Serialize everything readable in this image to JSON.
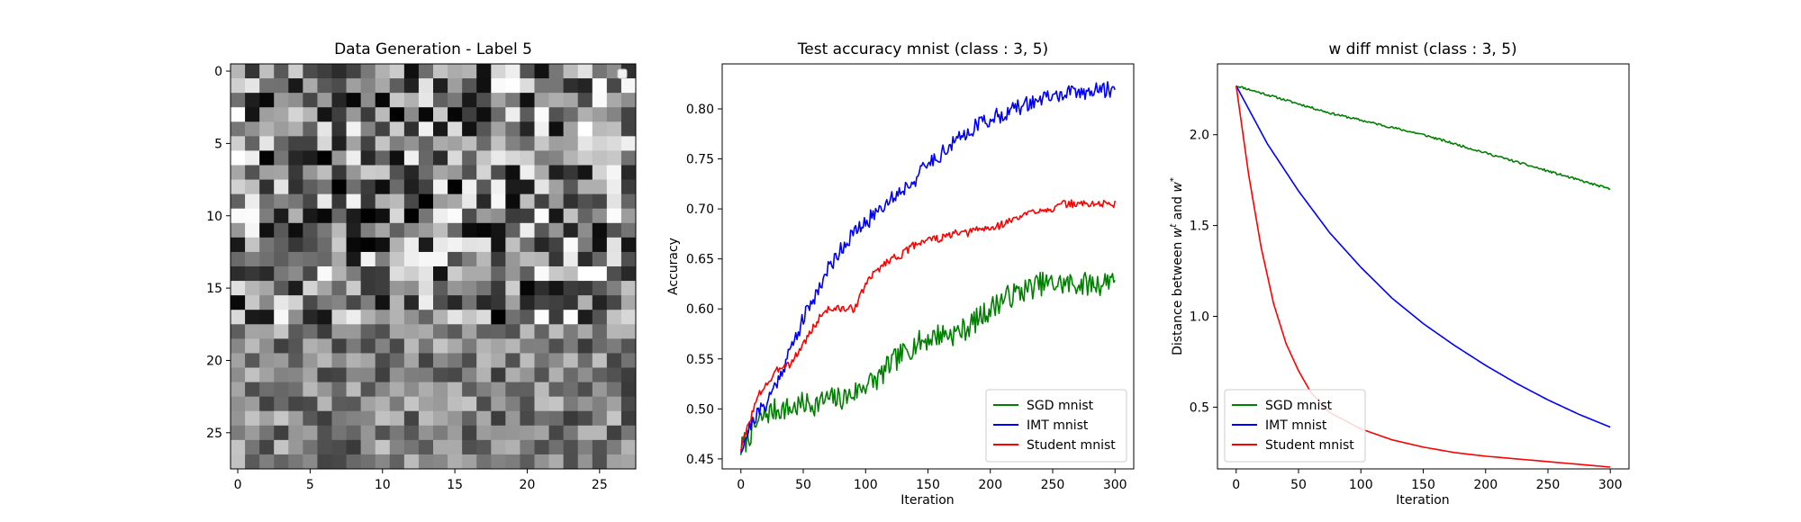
{
  "chart_data": [
    {
      "type": "heatmap",
      "title": "Data Generation - Label 5",
      "xlabel": "",
      "ylabel": "",
      "rows": 28,
      "cols": 28,
      "xlim": [
        -0.5,
        27.5
      ],
      "ylim": [
        27.5,
        -0.5
      ],
      "xticks": [
        0,
        5,
        10,
        15,
        20,
        25
      ],
      "yticks": [
        0,
        5,
        10,
        15,
        20,
        25
      ],
      "colormap": "gray",
      "value_range": [
        0,
        1
      ],
      "legend": "top-right (empty)",
      "seed": 1234
    },
    {
      "type": "line",
      "title": "Test accuracy mnist (class : 3, 5)",
      "xlabel": "Iteration",
      "ylabel": "Accuracy",
      "xlim": [
        -15,
        315
      ],
      "ylim": [
        0.44,
        0.845
      ],
      "xticks": [
        0,
        50,
        100,
        150,
        200,
        250,
        300
      ],
      "yticks": [
        0.45,
        0.5,
        0.55,
        0.6,
        0.65,
        0.7,
        0.75,
        0.8
      ],
      "ytick_labels": [
        "0.45",
        "0.50",
        "0.55",
        "0.60",
        "0.65",
        "0.70",
        "0.75",
        "0.80"
      ],
      "grid": false,
      "legend": "lower-right",
      "series": [
        {
          "name": "SGD mnist",
          "color": "#008000",
          "x": [
            0,
            10,
            20,
            30,
            40,
            50,
            60,
            70,
            80,
            90,
            100,
            110,
            120,
            130,
            140,
            150,
            160,
            170,
            180,
            190,
            200,
            210,
            220,
            230,
            240,
            250,
            260,
            270,
            280,
            290,
            300
          ],
          "y": [
            0.46,
            0.48,
            0.495,
            0.5,
            0.5,
            0.505,
            0.505,
            0.51,
            0.51,
            0.515,
            0.525,
            0.53,
            0.545,
            0.555,
            0.565,
            0.57,
            0.575,
            0.575,
            0.58,
            0.59,
            0.6,
            0.61,
            0.615,
            0.62,
            0.625,
            0.625,
            0.625,
            0.625,
            0.625,
            0.625,
            0.635
          ],
          "noise": 0.012,
          "noise_seed": 7
        },
        {
          "name": "IMT mnist",
          "color": "#0000ff",
          "x": [
            0,
            10,
            20,
            30,
            40,
            50,
            60,
            70,
            80,
            90,
            100,
            110,
            120,
            130,
            140,
            150,
            160,
            170,
            180,
            190,
            200,
            210,
            220,
            230,
            240,
            250,
            260,
            270,
            280,
            290,
            300
          ],
          "y": [
            0.46,
            0.49,
            0.505,
            0.53,
            0.56,
            0.59,
            0.615,
            0.64,
            0.66,
            0.675,
            0.685,
            0.7,
            0.71,
            0.72,
            0.73,
            0.745,
            0.755,
            0.765,
            0.775,
            0.785,
            0.79,
            0.795,
            0.8,
            0.805,
            0.81,
            0.812,
            0.815,
            0.816,
            0.818,
            0.819,
            0.82
          ],
          "noise": 0.008,
          "noise_seed": 21
        },
        {
          "name": "Student mnist",
          "color": "#ff0000",
          "x": [
            0,
            5,
            10,
            15,
            20,
            25,
            30,
            35,
            40,
            45,
            50,
            55,
            60,
            65,
            70,
            80,
            90,
            95,
            100,
            110,
            120,
            130,
            140,
            150,
            160,
            170,
            180,
            190,
            200,
            210,
            220,
            230,
            240,
            250,
            260,
            270,
            280,
            290,
            300
          ],
          "y": [
            0.46,
            0.48,
            0.5,
            0.515,
            0.525,
            0.53,
            0.54,
            0.545,
            0.545,
            0.555,
            0.565,
            0.575,
            0.585,
            0.595,
            0.6,
            0.6,
            0.6,
            0.61,
            0.625,
            0.64,
            0.65,
            0.655,
            0.665,
            0.67,
            0.67,
            0.675,
            0.675,
            0.68,
            0.68,
            0.685,
            0.69,
            0.695,
            0.7,
            0.7,
            0.705,
            0.705,
            0.705,
            0.705,
            0.705
          ],
          "noise": 0.004,
          "noise_seed": 3
        }
      ]
    },
    {
      "type": "line",
      "title": "w diff mnist (class : 3, 5)",
      "xlabel": "Iteration",
      "ylabel": "Distance between w^t and w^*",
      "ylabel_parts": {
        "prefix": "Distance between ",
        "w1": "w",
        "sup1": "t",
        "mid": " and ",
        "w2": "w",
        "sup2": "*"
      },
      "xlim": [
        -15,
        315
      ],
      "ylim": [
        0.16,
        2.39
      ],
      "xticks": [
        0,
        50,
        100,
        150,
        200,
        250,
        300
      ],
      "yticks": [
        0.5,
        1.0,
        1.5,
        2.0
      ],
      "ytick_labels": [
        "0.5",
        "1.0",
        "1.5",
        "2.0"
      ],
      "grid": false,
      "legend": "lower-left",
      "series": [
        {
          "name": "SGD mnist",
          "color": "#008000",
          "x": [
            0,
            25,
            50,
            75,
            100,
            125,
            150,
            175,
            200,
            225,
            250,
            275,
            300
          ],
          "y": [
            2.27,
            2.22,
            2.17,
            2.12,
            2.08,
            2.04,
            2.0,
            1.95,
            1.9,
            1.85,
            1.8,
            1.75,
            1.7
          ],
          "noise": 0.006,
          "noise_seed": 11
        },
        {
          "name": "IMT mnist",
          "color": "#0000ff",
          "x": [
            0,
            25,
            50,
            75,
            100,
            125,
            150,
            175,
            200,
            225,
            250,
            275,
            300
          ],
          "y": [
            2.27,
            1.95,
            1.69,
            1.46,
            1.27,
            1.1,
            0.96,
            0.84,
            0.73,
            0.63,
            0.54,
            0.46,
            0.39
          ],
          "noise": 0,
          "noise_seed": 0
        },
        {
          "name": "Student mnist",
          "color": "#ff0000",
          "x": [
            0,
            10,
            20,
            30,
            40,
            50,
            60,
            75,
            100,
            125,
            150,
            175,
            200,
            250,
            300
          ],
          "y": [
            2.27,
            1.78,
            1.38,
            1.07,
            0.85,
            0.7,
            0.58,
            0.47,
            0.38,
            0.32,
            0.28,
            0.25,
            0.23,
            0.2,
            0.17
          ],
          "noise": 0,
          "noise_seed": 0
        }
      ]
    }
  ]
}
